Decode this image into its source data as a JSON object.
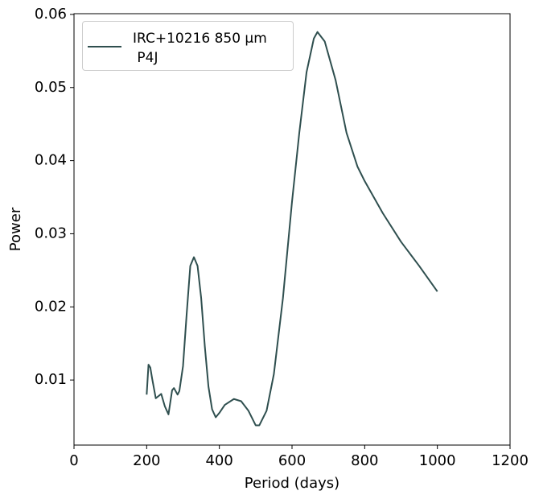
{
  "chart_data": {
    "type": "line",
    "x_label": "Period (days)",
    "y_label": "Power",
    "x": [
      200,
      205,
      210,
      215,
      225,
      240,
      250,
      260,
      270,
      275,
      285,
      290,
      300,
      310,
      320,
      330,
      340,
      350,
      360,
      370,
      380,
      390,
      400,
      415,
      440,
      460,
      480,
      500,
      510,
      530,
      550,
      575,
      600,
      620,
      640,
      660,
      670,
      690,
      720,
      750,
      780,
      800,
      850,
      900,
      950,
      1000
    ],
    "series": [
      {
        "name": "IRC+10216 850 μm\n P4J",
        "color": "#2f4f4f",
        "values": [
          0.008,
          0.0121,
          0.0117,
          0.0102,
          0.0075,
          0.0081,
          0.0064,
          0.0053,
          0.0086,
          0.0089,
          0.008,
          0.0085,
          0.0119,
          0.019,
          0.0256,
          0.0268,
          0.0256,
          0.0212,
          0.0146,
          0.0091,
          0.006,
          0.0049,
          0.0055,
          0.0066,
          0.0074,
          0.0071,
          0.0058,
          0.0038,
          0.0038,
          0.0058,
          0.0108,
          0.0212,
          0.0344,
          0.0438,
          0.0521,
          0.0567,
          0.0576,
          0.0563,
          0.051,
          0.0438,
          0.0392,
          0.0372,
          0.0328,
          0.0289,
          0.0256,
          0.0221
        ]
      }
    ],
    "xlim": [
      0,
      1200
    ],
    "xticks": [
      0,
      200,
      400,
      600,
      800,
      1000,
      1200
    ],
    "ylim": [
      0.0011,
      0.0601
    ],
    "yticks": [
      0.01,
      0.02,
      0.03,
      0.04,
      0.05,
      0.06
    ],
    "legend": "upper left",
    "grid": false
  }
}
